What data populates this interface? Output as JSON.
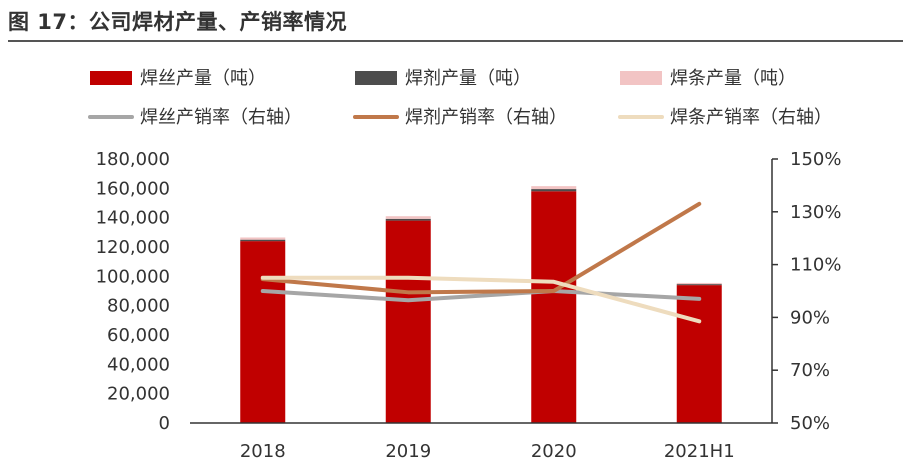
{
  "figure_title": "图 17：公司焊材产量、产销率情况",
  "chart_data": {
    "type": "bar",
    "categories": [
      "2018",
      "2019",
      "2020",
      "2021H1"
    ],
    "series": [
      {
        "name": "焊丝产量（吨）",
        "kind": "bar",
        "axis": "left",
        "color": "#C00000",
        "values": [
          124000,
          138000,
          158000,
          94000
        ]
      },
      {
        "name": "焊剂产量（吨）",
        "kind": "bar",
        "axis": "left",
        "color": "#4D4D4D",
        "values": [
          1000,
          1200,
          1500,
          700
        ]
      },
      {
        "name": "焊条产量（吨）",
        "kind": "bar",
        "axis": "left",
        "color": "#F2C4C4",
        "values": [
          1500,
          1800,
          2000,
          800
        ]
      },
      {
        "name": "焊丝产销率（右轴）",
        "kind": "line",
        "axis": "right",
        "color": "#A6A6A6",
        "values": [
          100,
          96.5,
          100,
          97
        ]
      },
      {
        "name": "焊剂产销率（右轴）",
        "kind": "line",
        "axis": "right",
        "color": "#C0784A",
        "values": [
          104.5,
          99.5,
          100,
          133
        ]
      },
      {
        "name": "焊条产销率（右轴）",
        "kind": "line",
        "axis": "right",
        "color": "#EEDCBE",
        "values": [
          105,
          105,
          103.5,
          88.5
        ]
      }
    ],
    "left_axis": {
      "min": 0,
      "max": 180000,
      "ticks": [
        "0",
        "20,000",
        "40,000",
        "60,000",
        "80,000",
        "100,000",
        "120,000",
        "140,000",
        "160,000",
        "180,000"
      ]
    },
    "right_axis": {
      "min": 50,
      "max": 150,
      "ticks": [
        "50%",
        "70%",
        "90%",
        "110%",
        "130%",
        "150%"
      ]
    },
    "legend_position": "top",
    "grid": false
  }
}
